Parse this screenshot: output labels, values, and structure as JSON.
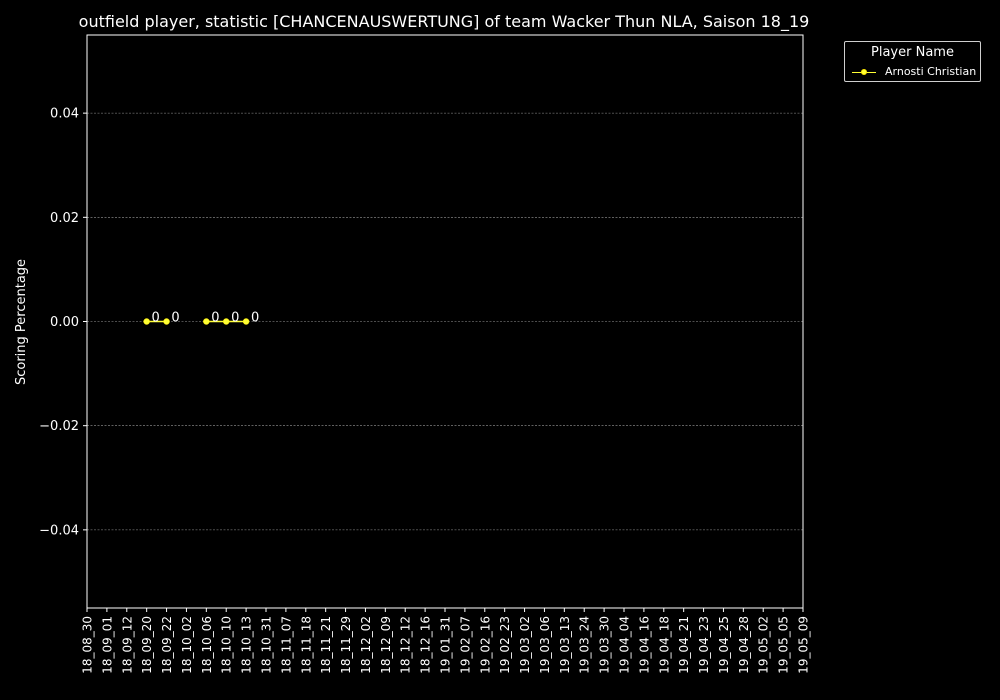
{
  "chart_data": {
    "type": "line",
    "title": "outfield player, statistic [CHANCENAUSWERTUNG] of team Wacker Thun NLA, Saison 18_19",
    "xlabel": "",
    "ylabel": "Scoring Percentage",
    "categories": [
      "18_08_30",
      "18_09_01",
      "18_09_12",
      "18_09_20",
      "18_09_22",
      "18_10_02",
      "18_10_06",
      "18_10_10",
      "18_10_13",
      "18_10_31",
      "18_11_07",
      "18_11_18",
      "18_11_21",
      "18_11_29",
      "18_12_02",
      "18_12_09",
      "18_12_12",
      "18_12_16",
      "19_01_31",
      "19_02_07",
      "19_02_16",
      "19_02_23",
      "19_03_02",
      "19_03_06",
      "19_03_13",
      "19_03_24",
      "19_03_30",
      "19_04_04",
      "19_04_16",
      "19_04_18",
      "19_04_21",
      "19_04_23",
      "19_04_25",
      "19_04_28",
      "19_05_02",
      "19_05_05",
      "19_05_09"
    ],
    "ylim": [
      -0.055,
      0.055
    ],
    "yticks": [
      -0.04,
      -0.02,
      0.0,
      0.02,
      0.04
    ],
    "ytick_labels": [
      "−0.04",
      "−0.02",
      "0.00",
      "0.02",
      "0.04"
    ],
    "grid": true,
    "legend_title": "Player Name",
    "legend_position": "outside-top-right",
    "series": [
      {
        "name": "Arnosti Christian",
        "color": "#ffff33",
        "points": [
          {
            "x": "18_09_20",
            "y": 0,
            "label": "0"
          },
          {
            "x": "18_09_22",
            "y": 0,
            "label": "0"
          },
          {
            "x": "18_10_06",
            "y": 0,
            "label": "0"
          },
          {
            "x": "18_10_10",
            "y": 0,
            "label": "0"
          },
          {
            "x": "18_10_13",
            "y": 0,
            "label": "0"
          }
        ],
        "segments": [
          [
            "18_09_20",
            "18_09_22"
          ],
          [
            "18_10_06",
            "18_10_10",
            "18_10_13"
          ]
        ]
      }
    ]
  }
}
